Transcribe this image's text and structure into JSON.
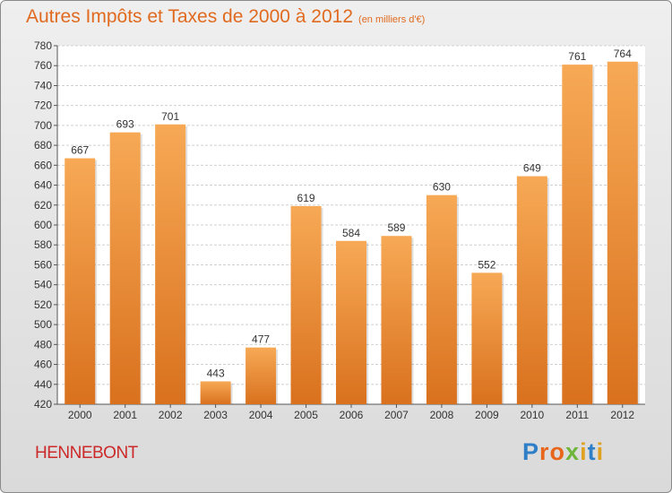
{
  "header": {
    "title": "Autres Impôts et Taxes de 2000 à 2012",
    "unit": "(en milliers d'€)"
  },
  "footer": {
    "commune": "HENNEBONT",
    "brand": "Proxiti"
  },
  "colors": {
    "bar_top": "#f7a955",
    "bar_bottom": "#d9711e",
    "title": "#e06a1f",
    "commune": "#cc2a2a"
  },
  "chart_data": {
    "type": "bar",
    "categories": [
      "2000",
      "2001",
      "2002",
      "2003",
      "2004",
      "2005",
      "2006",
      "2007",
      "2008",
      "2009",
      "2010",
      "2011",
      "2012"
    ],
    "values": [
      667,
      693,
      701,
      443,
      477,
      619,
      584,
      589,
      630,
      552,
      649,
      761,
      764
    ],
    "ylim": [
      420,
      780
    ],
    "yticks": [
      420,
      440,
      460,
      480,
      500,
      520,
      540,
      560,
      580,
      600,
      620,
      640,
      660,
      680,
      700,
      720,
      740,
      760,
      780
    ],
    "grid": true
  }
}
